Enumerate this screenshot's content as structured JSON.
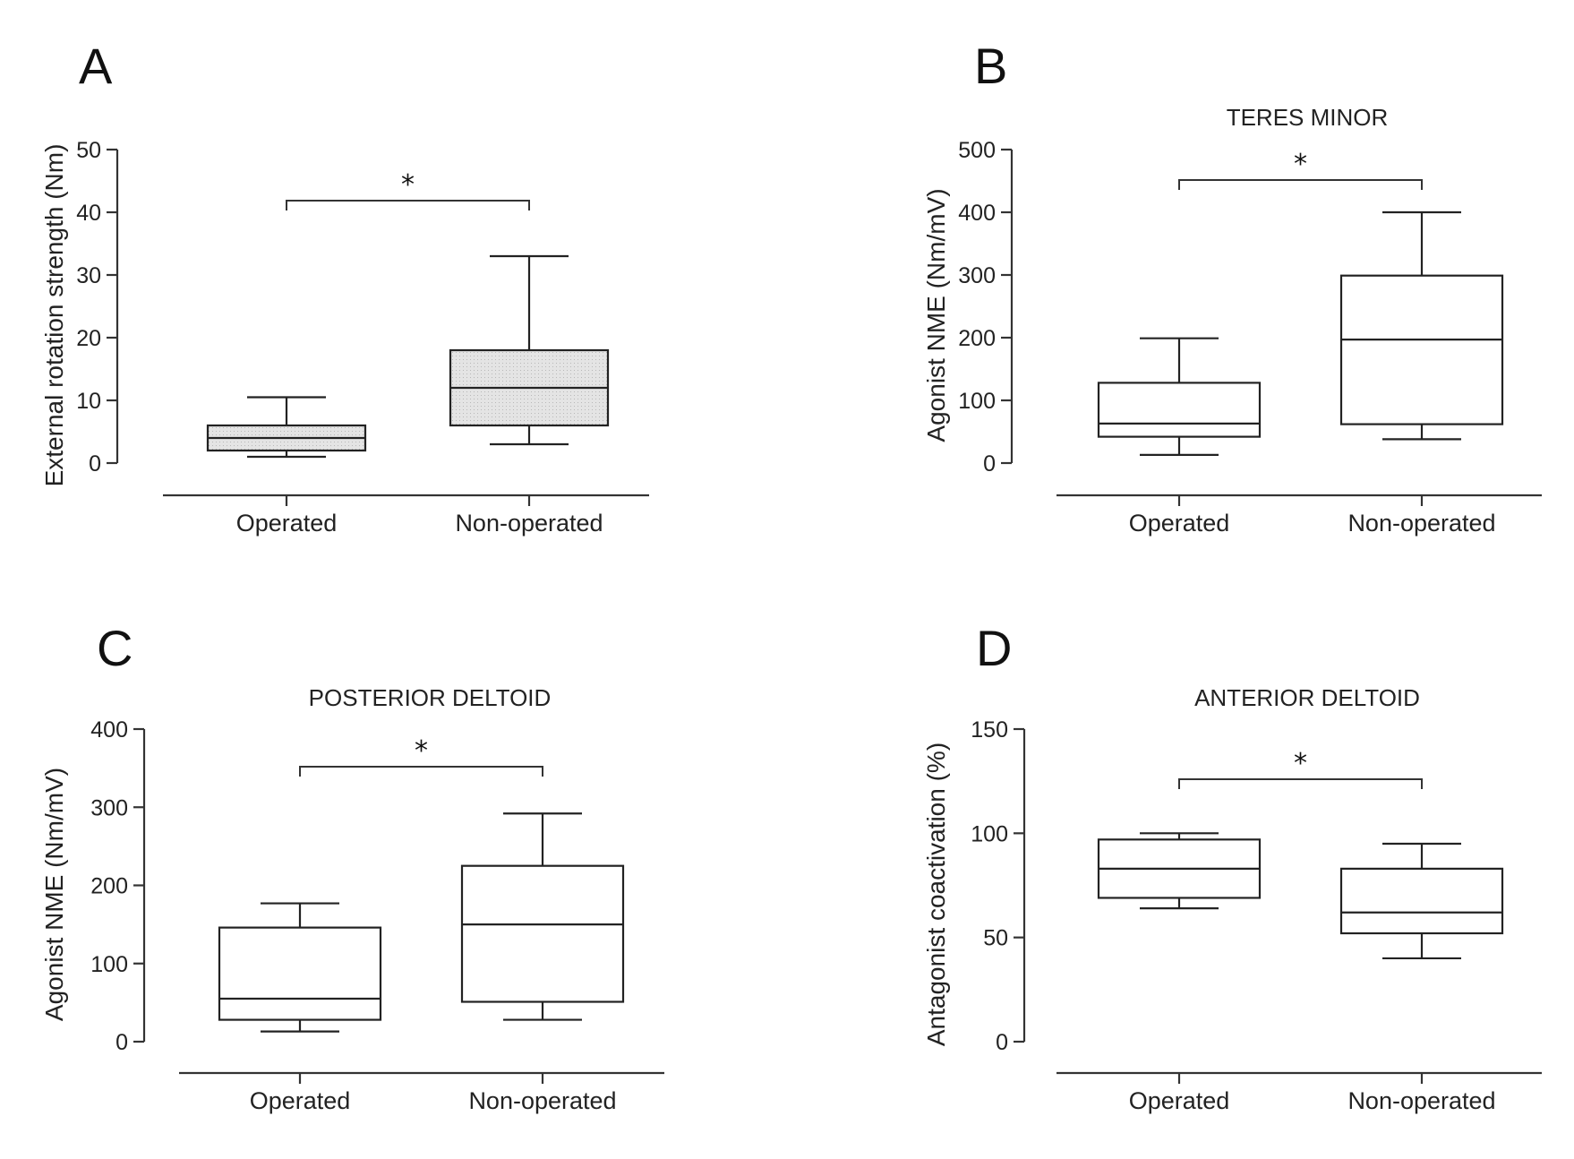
{
  "chart_data": [
    {
      "panel": "A",
      "type": "boxplot",
      "title": "",
      "xlabel": "",
      "ylabel": "External rotation strength (Nm)",
      "ylim": [
        0,
        50
      ],
      "yticks": [
        0,
        10,
        20,
        30,
        40,
        50
      ],
      "categories": [
        "Operated",
        "Non-operated"
      ],
      "box_fill": "#e4e4e4",
      "series": [
        {
          "name": "Operated",
          "min": 1,
          "q1": 2,
          "median": 4,
          "q3": 6,
          "max": 10.5
        },
        {
          "name": "Non-operated",
          "min": 3,
          "q1": 6,
          "median": 12,
          "q3": 18,
          "max": 33
        }
      ],
      "significance": "*"
    },
    {
      "panel": "B",
      "type": "boxplot",
      "title": "TERES MINOR",
      "xlabel": "",
      "ylabel": "Agonist NME (Nm/mV)",
      "ylim": [
        0,
        500
      ],
      "yticks": [
        0,
        100,
        200,
        300,
        400,
        500
      ],
      "categories": [
        "Operated",
        "Non-operated"
      ],
      "box_fill": "#ffffff",
      "series": [
        {
          "name": "Operated",
          "min": 13,
          "q1": 42,
          "median": 63,
          "q3": 128,
          "max": 199
        },
        {
          "name": "Non-operated",
          "min": 38,
          "q1": 62,
          "median": 197,
          "q3": 299,
          "max": 400
        }
      ],
      "significance": "*"
    },
    {
      "panel": "C",
      "type": "boxplot",
      "title": "POSTERIOR DELTOID",
      "xlabel": "",
      "ylabel": "Agonist NME (Nm/mV)",
      "ylim": [
        0,
        400
      ],
      "yticks": [
        0,
        100,
        200,
        300,
        400
      ],
      "categories": [
        "Operated",
        "Non-operated"
      ],
      "box_fill": "#ffffff",
      "series": [
        {
          "name": "Operated",
          "min": 13,
          "q1": 28,
          "median": 55,
          "q3": 146,
          "max": 177
        },
        {
          "name": "Non-operated",
          "min": 28,
          "q1": 51,
          "median": 150,
          "q3": 225,
          "max": 292
        }
      ],
      "significance": "*"
    },
    {
      "panel": "D",
      "type": "boxplot",
      "title": "ANTERIOR DELTOID",
      "xlabel": "",
      "ylabel": "Antagonist coactivation (%)",
      "ylim": [
        0,
        150
      ],
      "yticks": [
        0,
        50,
        100,
        150
      ],
      "categories": [
        "Operated",
        "Non-operated"
      ],
      "box_fill": "#ffffff",
      "series": [
        {
          "name": "Operated",
          "min": 64,
          "q1": 69,
          "median": 83,
          "q3": 97,
          "max": 100
        },
        {
          "name": "Non-operated",
          "min": 40,
          "q1": 52,
          "median": 62,
          "q3": 83,
          "max": 95
        }
      ],
      "significance": "*"
    }
  ]
}
